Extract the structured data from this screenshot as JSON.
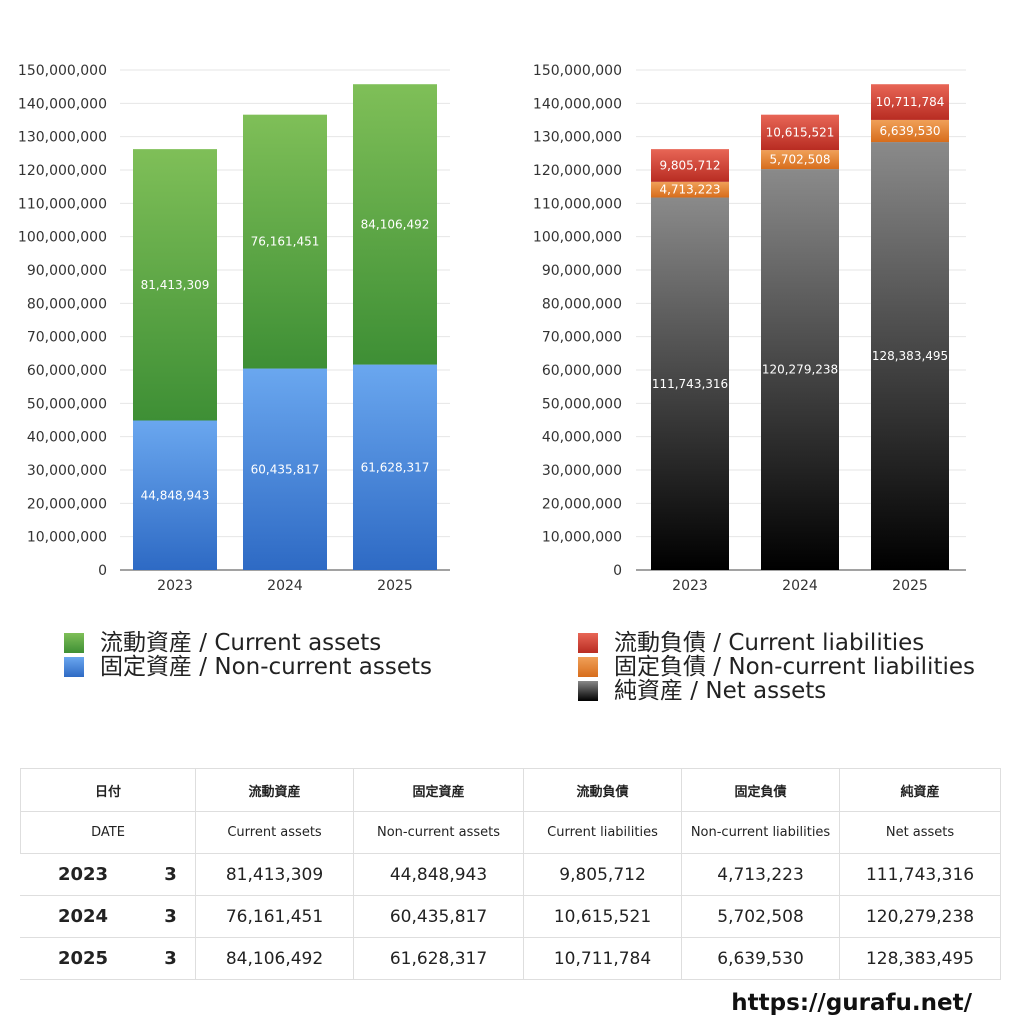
{
  "chart_data": [
    {
      "type": "bar",
      "stacked": true,
      "categories": [
        "2023",
        "2024",
        "2025"
      ],
      "ylim": [
        0,
        150000000
      ],
      "yticks": [
        0,
        10000000,
        20000000,
        30000000,
        40000000,
        50000000,
        60000000,
        70000000,
        80000000,
        90000000,
        100000000,
        110000000,
        120000000,
        130000000,
        140000000,
        150000000
      ],
      "ytick_labels": [
        "0",
        "10,000,000",
        "20,000,000",
        "30,000,000",
        "40,000,000",
        "50,000,000",
        "60,000,000",
        "70,000,000",
        "80,000,000",
        "90,000,000",
        "100,000,000",
        "110,000,000",
        "120,000,000",
        "130,000,000",
        "140,000,000",
        "150,000,000"
      ],
      "grid": true,
      "series": [
        {
          "name": "固定資産 / Non-current assets",
          "values": [
            44848943,
            60435817,
            61628317
          ],
          "labels": [
            "44,848,943",
            "60,435,817",
            "61,628,317"
          ],
          "color_top": "#6aa7ef",
          "color_bottom": "#2e6ac4"
        },
        {
          "name": "流動資産 / Current assets",
          "values": [
            81413309,
            76161451,
            84106492
          ],
          "labels": [
            "81,413,309",
            "76,161,451",
            "84,106,492"
          ],
          "color_top": "#7fbf58",
          "color_bottom": "#3e8f35"
        }
      ],
      "legend": [
        "流動資産 / Current assets",
        "固定資産 / Non-current assets"
      ]
    },
    {
      "type": "bar",
      "stacked": true,
      "categories": [
        "2023",
        "2024",
        "2025"
      ],
      "ylim": [
        0,
        150000000
      ],
      "yticks": [
        0,
        10000000,
        20000000,
        30000000,
        40000000,
        50000000,
        60000000,
        70000000,
        80000000,
        90000000,
        100000000,
        110000000,
        120000000,
        130000000,
        140000000,
        150000000
      ],
      "ytick_labels": [
        "0",
        "10,000,000",
        "20,000,000",
        "30,000,000",
        "40,000,000",
        "50,000,000",
        "60,000,000",
        "70,000,000",
        "80,000,000",
        "90,000,000",
        "100,000,000",
        "110,000,000",
        "120,000,000",
        "130,000,000",
        "140,000,000",
        "150,000,000"
      ],
      "grid": true,
      "series": [
        {
          "name": "純資産 / Net assets",
          "values": [
            111743316,
            120279238,
            128383495
          ],
          "labels": [
            "111,743,316",
            "120,279,238",
            "128,383,495"
          ],
          "color_top": "#8a8a8a",
          "color_bottom": "#000000"
        },
        {
          "name": "固定負債 / Non-current liabilities",
          "values": [
            4713223,
            5702508,
            6639530
          ],
          "labels": [
            "4,713,223",
            "5,702,508",
            "6,639,530"
          ],
          "color_top": "#f0a058",
          "color_bottom": "#d76d1c"
        },
        {
          "name": "流動負債 / Current liabilities",
          "values": [
            9805712,
            10615521,
            10711784
          ],
          "labels": [
            "9,805,712",
            "10,615,521",
            "10,711,784"
          ],
          "color_top": "#e86656",
          "color_bottom": "#b82c22"
        }
      ],
      "legend": [
        "流動負債 / Current liabilities",
        "固定負債 / Non-current liabilities",
        "純資産 / Net assets"
      ]
    }
  ],
  "table": {
    "headers": [
      "日付",
      "流動資産",
      "固定資産",
      "流動負債",
      "固定負債",
      "純資産"
    ],
    "subheaders": [
      "DATE",
      "Current assets",
      "Non-current assets",
      "Current liabilities",
      "Non-current liabilities",
      "Net assets"
    ],
    "rows": [
      {
        "year": "2023",
        "month": "3",
        "values": [
          "81,413,309",
          "44,848,943",
          "9,805,712",
          "4,713,223",
          "111,743,316"
        ]
      },
      {
        "year": "2024",
        "month": "3",
        "values": [
          "76,161,451",
          "60,435,817",
          "10,615,521",
          "5,702,508",
          "120,279,238"
        ]
      },
      {
        "year": "2025",
        "month": "3",
        "values": [
          "84,106,492",
          "61,628,317",
          "10,711,784",
          "6,639,530",
          "128,383,495"
        ]
      }
    ]
  },
  "footer": {
    "url": "https://gurafu.net/"
  }
}
